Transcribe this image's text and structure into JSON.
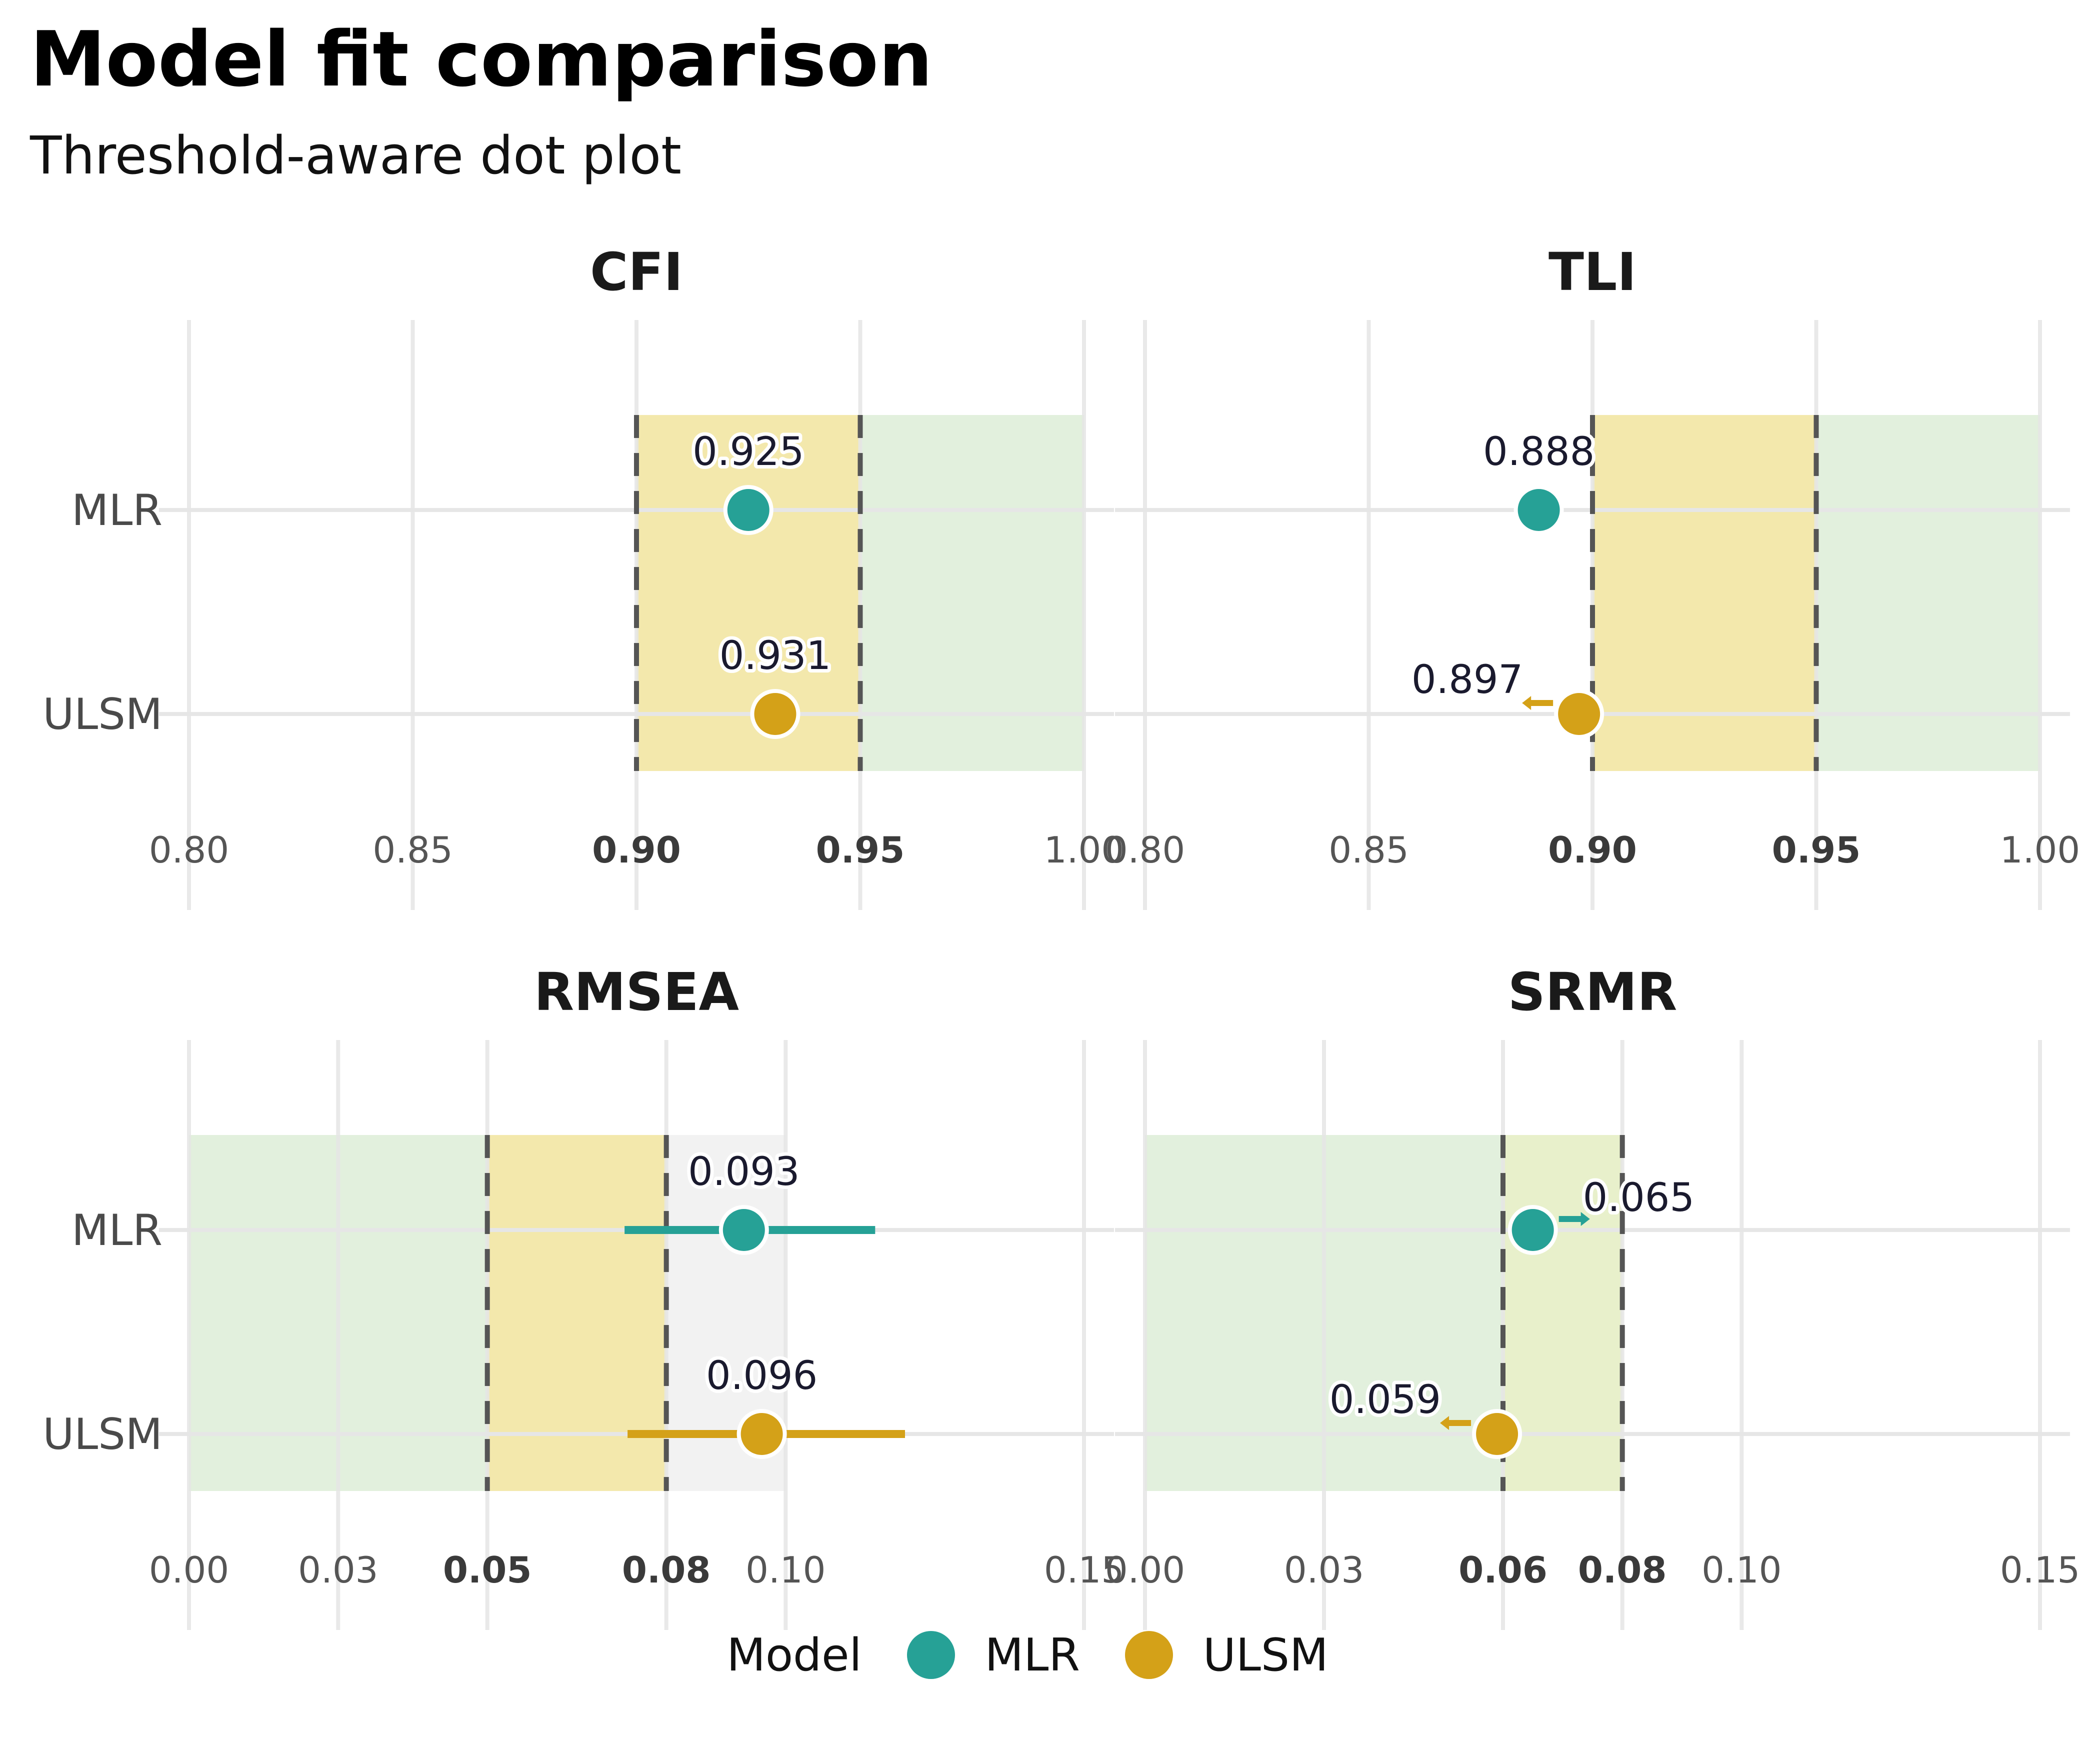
{
  "title": "Model fit comparison",
  "subtitle": "Threshold-aware dot plot",
  "legend": {
    "title": "Model",
    "items": [
      {
        "label": "MLR",
        "color": "#26a196"
      },
      {
        "label": "ULSM",
        "color": "#d4a118"
      }
    ]
  },
  "chart_data": [
    {
      "type": "scatter",
      "title": "CFI",
      "categories": [
        "MLR",
        "ULSM"
      ],
      "xlim": [
        0.8,
        1.0
      ],
      "ticks": [
        "0.80",
        "0.85",
        "0.90",
        "0.95",
        "1.00"
      ],
      "tick_values": [
        0.8,
        0.85,
        0.9,
        0.95,
        1.0
      ],
      "bold_ticks": [
        "0.90",
        "0.95"
      ],
      "thresholds": [
        0.9,
        0.95
      ],
      "bands": [
        {
          "from": 0.9,
          "to": 0.95,
          "color": "#f3e8ac"
        },
        {
          "from": 0.95,
          "to": 1.0,
          "color": "#e2f0dd"
        }
      ],
      "points": [
        {
          "model": "MLR",
          "value": 0.925,
          "label": "0.925",
          "color": "#26a196",
          "label_pos": "above"
        },
        {
          "model": "ULSM",
          "value": 0.931,
          "label": "0.931",
          "color": "#d4a118",
          "label_pos": "above"
        }
      ]
    },
    {
      "type": "scatter",
      "title": "TLI",
      "categories": [
        "MLR",
        "ULSM"
      ],
      "xlim": [
        0.8,
        1.0
      ],
      "ticks": [
        "0.80",
        "0.85",
        "0.90",
        "0.95",
        "1.00"
      ],
      "tick_values": [
        0.8,
        0.85,
        0.9,
        0.95,
        1.0
      ],
      "bold_ticks": [
        "0.90",
        "0.95"
      ],
      "thresholds": [
        0.9,
        0.95
      ],
      "bands": [
        {
          "from": 0.9,
          "to": 0.95,
          "color": "#f3e8ac"
        },
        {
          "from": 0.95,
          "to": 1.0,
          "color": "#e2f0dd"
        }
      ],
      "points": [
        {
          "model": "MLR",
          "value": 0.888,
          "label": "0.888",
          "color": "#26a196",
          "label_pos": "above"
        },
        {
          "model": "ULSM",
          "value": 0.897,
          "label": "0.897",
          "color": "#d4a118",
          "label_pos": "left",
          "arrow": "left"
        }
      ]
    },
    {
      "type": "scatter",
      "title": "RMSEA",
      "categories": [
        "MLR",
        "ULSM"
      ],
      "xlim": [
        0.0,
        0.15
      ],
      "ticks": [
        "0.00",
        "0.03",
        "0.05",
        "0.08",
        "0.10",
        "0.15"
      ],
      "tick_values": [
        0.0,
        0.025,
        0.05,
        0.08,
        0.1,
        0.15
      ],
      "bold_ticks": [
        "0.05",
        "0.08"
      ],
      "thresholds": [
        0.05,
        0.08
      ],
      "bands": [
        {
          "from": 0.0,
          "to": 0.05,
          "color": "#e2f0dd"
        },
        {
          "from": 0.05,
          "to": 0.08,
          "color": "#f3e8ac"
        },
        {
          "from": 0.08,
          "to": 0.1,
          "color": "#f2f2f2"
        }
      ],
      "points": [
        {
          "model": "MLR",
          "value": 0.093,
          "label": "0.093",
          "color": "#26a196",
          "label_pos": "above",
          "ci": [
            0.073,
            0.115
          ]
        },
        {
          "model": "ULSM",
          "value": 0.096,
          "label": "0.096",
          "color": "#d4a118",
          "label_pos": "above",
          "ci": [
            0.0735,
            0.12
          ]
        }
      ]
    },
    {
      "type": "scatter",
      "title": "SRMR",
      "categories": [
        "MLR",
        "ULSM"
      ],
      "xlim": [
        0.0,
        0.15
      ],
      "ticks": [
        "0.00",
        "0.03",
        "0.06",
        "0.08",
        "0.10",
        "0.15"
      ],
      "tick_values": [
        0.0,
        0.03,
        0.06,
        0.08,
        0.1,
        0.15
      ],
      "bold_ticks": [
        "0.06",
        "0.08"
      ],
      "thresholds": [
        0.06,
        0.08
      ],
      "bands": [
        {
          "from": 0.0,
          "to": 0.06,
          "color": "#e2f0dd"
        },
        {
          "from": 0.06,
          "to": 0.08,
          "color": "#e8f0cb"
        }
      ],
      "points": [
        {
          "model": "MLR",
          "value": 0.065,
          "label": "0.065",
          "color": "#26a196",
          "label_pos": "right",
          "arrow": "right"
        },
        {
          "model": "ULSM",
          "value": 0.059,
          "label": "0.059",
          "color": "#d4a118",
          "label_pos": "left",
          "arrow": "left"
        }
      ]
    }
  ]
}
